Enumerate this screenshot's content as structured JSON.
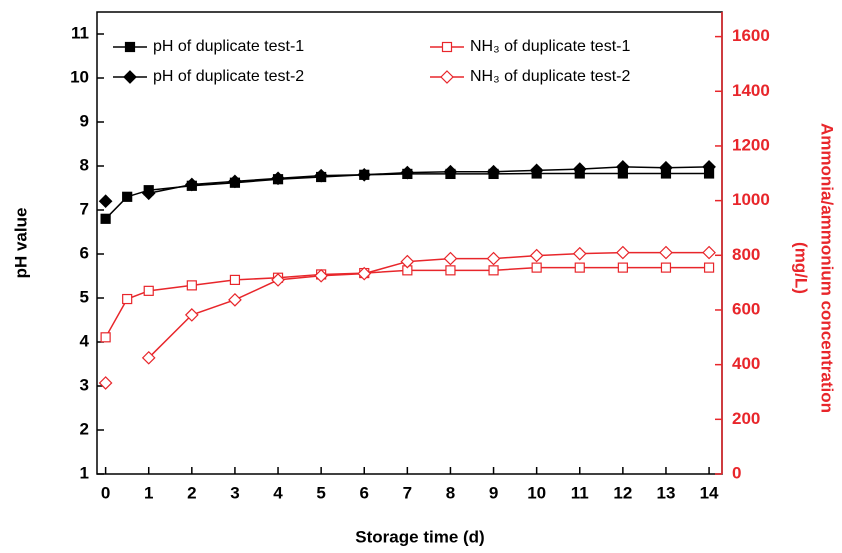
{
  "chart_data": {
    "type": "line",
    "xlabel": "Storage time (d)",
    "ylabel": "pH value",
    "y2label": [
      "Ammonia/ammonium concentration",
      "(mg/L)"
    ],
    "y2color": "#e8262b",
    "xlim": [
      -0.2,
      14.3
    ],
    "xticks": [
      0,
      1,
      2,
      3,
      4,
      5,
      6,
      7,
      8,
      9,
      10,
      11,
      12,
      13,
      14
    ],
    "ylim": [
      1,
      11.5
    ],
    "yticks": [
      1,
      2,
      3,
      4,
      5,
      6,
      7,
      8,
      9,
      10,
      11
    ],
    "y2lim": [
      0,
      1690
    ],
    "y2ticks": [
      0,
      200,
      400,
      600,
      800,
      1000,
      1200,
      1400,
      1600
    ],
    "series": [
      {
        "name": "pH of duplicate test-1",
        "color": "#000000",
        "marker": "square",
        "filled": true,
        "axis": "y",
        "x": [
          0,
          0.5,
          1,
          2,
          3,
          4,
          5,
          6,
          7,
          8,
          9,
          10,
          11,
          12,
          13,
          14
        ],
        "values": [
          6.8,
          7.3,
          7.45,
          7.55,
          7.62,
          7.7,
          7.75,
          7.8,
          7.82,
          7.82,
          7.82,
          7.83,
          7.83,
          7.83,
          7.83,
          7.83
        ]
      },
      {
        "name": "pH of duplicate test-2",
        "color": "#000000",
        "marker": "diamond",
        "filled": true,
        "axis": "y",
        "x": [
          0,
          0.5,
          1,
          2,
          3,
          4,
          5,
          6,
          7,
          8,
          9,
          10,
          11,
          12,
          13,
          14
        ],
        "values": [
          7.2,
          null,
          7.38,
          7.58,
          7.65,
          7.72,
          7.78,
          7.8,
          7.85,
          7.87,
          7.87,
          7.9,
          7.93,
          7.98,
          7.96,
          7.98
        ]
      },
      {
        "name": "NH₃ of duplicate test-1",
        "color": "#e8262b",
        "marker": "square",
        "filled": false,
        "axis": "y2",
        "x": [
          0,
          0.5,
          1,
          2,
          3,
          4,
          5,
          6,
          7,
          8,
          9,
          10,
          11,
          12,
          13,
          14
        ],
        "values": [
          500,
          640,
          670,
          690,
          710,
          718,
          730,
          735,
          745,
          745,
          745,
          755,
          755,
          755,
          755,
          755
        ]
      },
      {
        "name": "NH₃ of duplicate test-2",
        "color": "#e8262b",
        "marker": "diamond",
        "filled": false,
        "axis": "y2",
        "x": [
          0,
          0.5,
          1,
          2,
          3,
          4,
          5,
          6,
          7,
          8,
          9,
          10,
          11,
          12,
          13,
          14
        ],
        "values": [
          333,
          null,
          425,
          582,
          637,
          710,
          725,
          733,
          777,
          788,
          788,
          799,
          806,
          810,
          810,
          810
        ]
      }
    ]
  }
}
